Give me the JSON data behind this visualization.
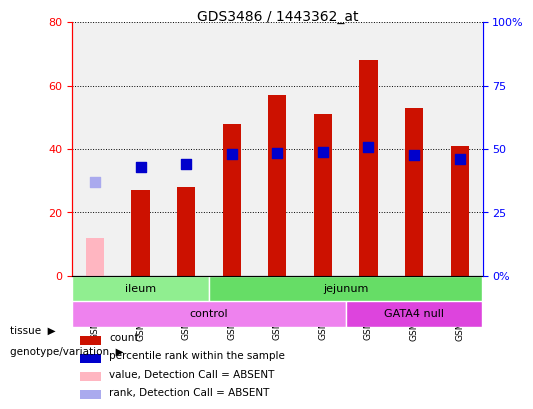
{
  "title": "GDS3486 / 1443362_at",
  "samples": [
    "GSM281932",
    "GSM281933",
    "GSM281934",
    "GSM281926",
    "GSM281927",
    "GSM281928",
    "GSM281929",
    "GSM281930",
    "GSM281931"
  ],
  "count_values": [
    null,
    27,
    28,
    48,
    57,
    51,
    68,
    53,
    41
  ],
  "count_absent": [
    12,
    null,
    null,
    null,
    null,
    null,
    null,
    null,
    null
  ],
  "percentile_values": [
    null,
    43,
    44,
    48,
    48.5,
    49,
    51,
    47.5,
    46
  ],
  "percentile_absent": [
    37,
    null,
    null,
    null,
    null,
    null,
    null,
    null,
    null
  ],
  "absent_flags": [
    true,
    false,
    false,
    false,
    false,
    false,
    false,
    false,
    false
  ],
  "tissue_groups": [
    {
      "label": "ileum",
      "start": 0,
      "end": 3,
      "color": "#90EE90"
    },
    {
      "label": "jejunum",
      "start": 3,
      "end": 9,
      "color": "#66DD66"
    }
  ],
  "genotype_groups": [
    {
      "label": "control",
      "start": 0,
      "end": 6,
      "color": "#EE82EE"
    },
    {
      "label": "GATA4 null",
      "start": 6,
      "end": 9,
      "color": "#DD44DD"
    }
  ],
  "bar_color": "#CC1100",
  "bar_absent_color": "#FFB6C1",
  "dot_color": "#0000CC",
  "dot_absent_color": "#AAAAEE",
  "left_ylim": [
    0,
    80
  ],
  "right_ylim": [
    0,
    100
  ],
  "left_yticks": [
    0,
    20,
    40,
    60,
    80
  ],
  "right_yticks": [
    0,
    25,
    50,
    75,
    100
  ],
  "left_yticklabels": [
    "0",
    "20",
    "40",
    "60",
    "80"
  ],
  "right_yticklabels": [
    "0%",
    "25",
    "50",
    "75",
    "100%"
  ],
  "grid_color": "#000000",
  "background_color": "#FFFFFF",
  "plot_bg_color": "#FFFFFF",
  "bar_width": 0.4,
  "dot_size": 60
}
